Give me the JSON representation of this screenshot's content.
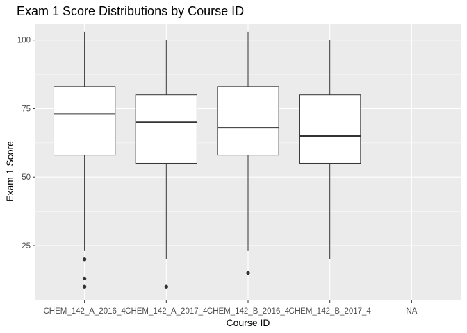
{
  "chart_data": {
    "type": "boxplot",
    "title": "Exam 1 Score Distributions by Course ID",
    "xlabel": "Course ID",
    "ylabel": "Exam 1 Score",
    "ylim": [
      5,
      106
    ],
    "yticks": [
      25,
      50,
      75,
      100
    ],
    "grid": true,
    "categories": [
      "CHEM_142_A_2016_4",
      "CHEM_142_A_2017_4",
      "CHEM_142_B_2016_4",
      "CHEM_142_B_2017_4",
      "NA"
    ],
    "boxes": [
      {
        "category": "CHEM_142_A_2016_4",
        "lower_whisker": 23,
        "q1": 58,
        "median": 73,
        "q3": 83,
        "upper_whisker": 103,
        "outliers": [
          20,
          13,
          10
        ]
      },
      {
        "category": "CHEM_142_A_2017_4",
        "lower_whisker": 20,
        "q1": 55,
        "median": 70,
        "q3": 80,
        "upper_whisker": 100,
        "outliers": [
          10
        ]
      },
      {
        "category": "CHEM_142_B_2016_4",
        "lower_whisker": 23,
        "q1": 58,
        "median": 68,
        "q3": 83,
        "upper_whisker": 103,
        "outliers": [
          15
        ]
      },
      {
        "category": "CHEM_142_B_2017_4",
        "lower_whisker": 20,
        "q1": 55,
        "median": 65,
        "q3": 80,
        "upper_whisker": 100,
        "outliers": []
      }
    ],
    "colors": {
      "panel_background": "#ebebeb",
      "grid_major": "#ffffff",
      "box_fill": "#ffffff",
      "box_line": "#333333",
      "outlier": "#333333"
    }
  }
}
